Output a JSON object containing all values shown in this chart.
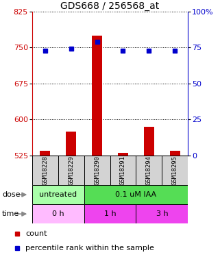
{
  "title": "GDS668 / 256568_at",
  "samples": [
    "GSM18228",
    "GSM18229",
    "GSM18290",
    "GSM18291",
    "GSM18294",
    "GSM18295"
  ],
  "count_values": [
    535,
    575,
    775,
    530,
    585,
    535
  ],
  "count_base": 525,
  "percentile_values": [
    73,
    74,
    79,
    73,
    73,
    73
  ],
  "ylim_left": [
    525,
    825
  ],
  "ylim_right": [
    0,
    100
  ],
  "yticks_left": [
    525,
    600,
    675,
    750,
    825
  ],
  "yticks_right": [
    0,
    25,
    50,
    75,
    100
  ],
  "dose_labels": [
    {
      "label": "untreated",
      "start": 0,
      "end": 2,
      "color": "#aaffaa"
    },
    {
      "label": "0.1 uM IAA",
      "start": 2,
      "end": 6,
      "color": "#55dd55"
    }
  ],
  "time_colors": [
    "#ffbbff",
    "#ee44ee",
    "#ee44ee"
  ],
  "time_labels": [
    {
      "label": "0 h",
      "start": 0,
      "end": 2
    },
    {
      "label": "1 h",
      "start": 2,
      "end": 4
    },
    {
      "label": "3 h",
      "start": 4,
      "end": 6
    }
  ],
  "bar_color": "#cc0000",
  "dot_color": "#0000cc",
  "sample_box_color": "#d3d3d3",
  "left_axis_color": "#cc0000",
  "right_axis_color": "#0000cc",
  "title_fontsize": 10,
  "tick_fontsize": 8,
  "sample_fontsize": 6.5
}
